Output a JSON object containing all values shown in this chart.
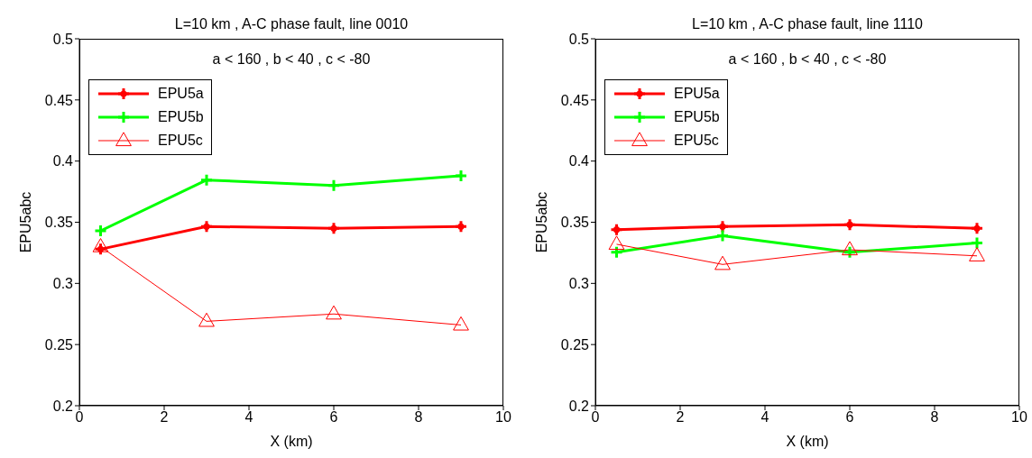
{
  "chart_data": [
    {
      "type": "line",
      "title": "L=10 km , A-C phase fault, line 0010",
      "xlabel": "X (km)",
      "ylabel": "EPU5abc",
      "annotations": [
        "a < 160 , b < 40 , c < -80"
      ],
      "x": [
        0.5,
        3,
        6,
        9
      ],
      "xlim": [
        0,
        10
      ],
      "xticks": [
        0,
        2,
        4,
        6,
        8,
        10
      ],
      "ylim": [
        0.2,
        0.5
      ],
      "yticks": [
        0.2,
        0.25,
        0.3,
        0.35,
        0.4,
        0.45,
        0.5
      ],
      "grid": false,
      "legend": "top left",
      "line_style": "solid",
      "series": [
        {
          "name": "EPU5a",
          "color": "#ff0000",
          "marker": "circle",
          "values": [
            0.328,
            0.3465,
            0.345,
            0.3465
          ]
        },
        {
          "name": "EPU5b",
          "color": "#00ff00",
          "marker": "cross",
          "values": [
            0.343,
            0.3845,
            0.38,
            0.388
          ]
        },
        {
          "name": "EPU5c",
          "color": "#ff0000",
          "marker": "triangle",
          "values": [
            0.33,
            0.269,
            0.275,
            0.266
          ]
        }
      ]
    },
    {
      "type": "line",
      "title": "L=10 km , A-C phase fault, line 1110",
      "xlabel": "X (km)",
      "ylabel": "EPU5abc",
      "annotations": [
        "a < 160 , b < 40 , c < -80"
      ],
      "x": [
        0.5,
        3,
        6,
        9
      ],
      "xlim": [
        0,
        10
      ],
      "xticks": [
        0,
        2,
        4,
        6,
        8,
        10
      ],
      "ylim": [
        0.2,
        0.5
      ],
      "yticks": [
        0.2,
        0.25,
        0.3,
        0.35,
        0.4,
        0.45,
        0.5
      ],
      "grid": false,
      "legend": "top left",
      "line_style": "solid",
      "series": [
        {
          "name": "EPU5a",
          "color": "#ff0000",
          "marker": "circle",
          "values": [
            0.344,
            0.3465,
            0.348,
            0.345
          ]
        },
        {
          "name": "EPU5b",
          "color": "#00ff00",
          "marker": "cross",
          "values": [
            0.3255,
            0.339,
            0.3255,
            0.333
          ]
        },
        {
          "name": "EPU5c",
          "color": "#ff0000",
          "marker": "triangle",
          "values": [
            0.332,
            0.3155,
            0.3275,
            0.3225
          ]
        }
      ]
    }
  ]
}
